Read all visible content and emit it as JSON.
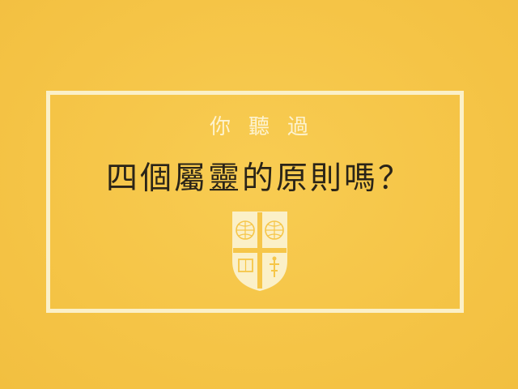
{
  "cover": {
    "subtitle": "你聽過",
    "title": "四個屬靈的原則嗎？",
    "emblem_icon": "shield-emblem-icon",
    "colors": {
      "background": "#f6c648",
      "frame": "#fbf0c8",
      "title_text": "#2a2418",
      "subtitle_text": "#fdf3d0"
    }
  }
}
